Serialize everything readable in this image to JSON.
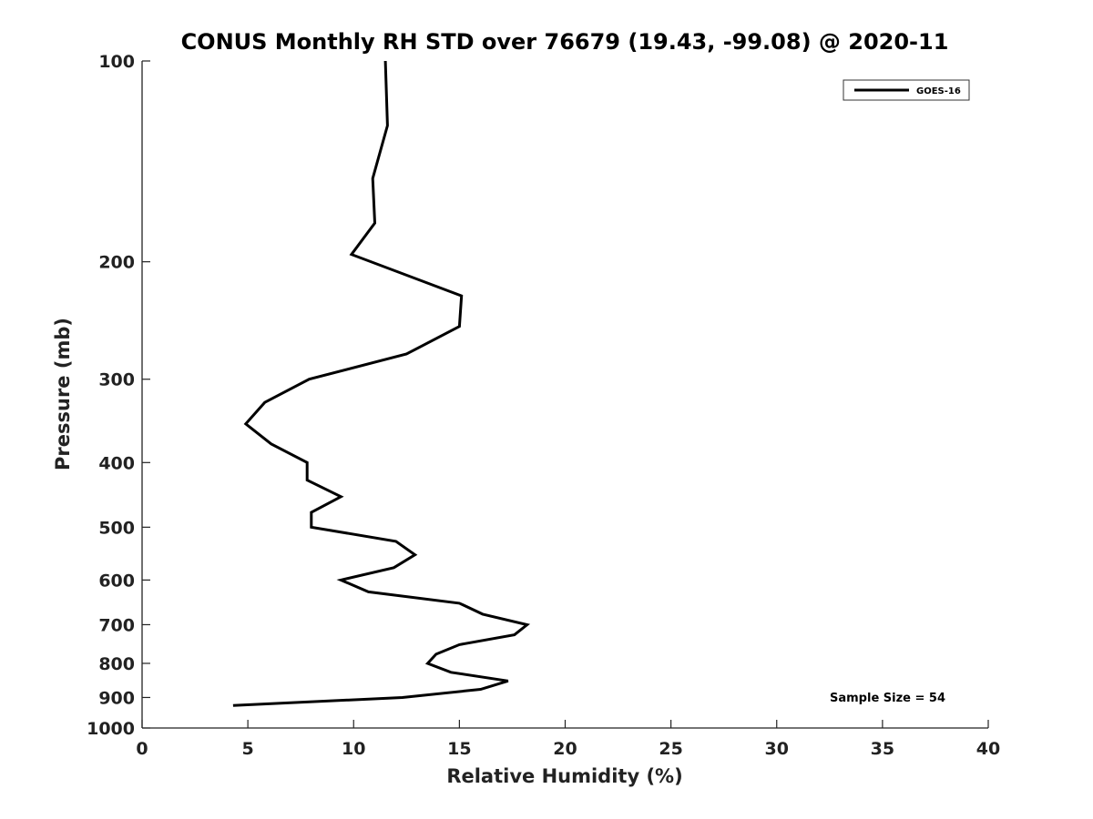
{
  "chart_data": {
    "type": "line",
    "title": "CONUS Monthly RH STD over 76679 (19.43, -99.08) @ 2020-11",
    "xlabel": "Relative Humidity (%)",
    "ylabel": "Pressure (mb)",
    "xlim": [
      0,
      40
    ],
    "ylim": [
      1000,
      100
    ],
    "y_scale": "log",
    "x_ticks": [
      0,
      5,
      10,
      15,
      20,
      25,
      30,
      35,
      40
    ],
    "y_ticks": [
      100,
      200,
      300,
      400,
      500,
      600,
      700,
      800,
      900,
      1000
    ],
    "grid": false,
    "legend_position": "top-right",
    "annotation": "Sample Size = 54",
    "series": [
      {
        "name": "GOES-16",
        "color": "#000000",
        "points": [
          {
            "x": 11.5,
            "y": 100
          },
          {
            "x": 11.6,
            "y": 125
          },
          {
            "x": 10.9,
            "y": 150
          },
          {
            "x": 11.0,
            "y": 175
          },
          {
            "x": 9.9,
            "y": 195
          },
          {
            "x": 15.1,
            "y": 225
          },
          {
            "x": 15.0,
            "y": 250
          },
          {
            "x": 12.5,
            "y": 275
          },
          {
            "x": 7.9,
            "y": 300
          },
          {
            "x": 5.8,
            "y": 325
          },
          {
            "x": 4.9,
            "y": 350
          },
          {
            "x": 6.1,
            "y": 375
          },
          {
            "x": 7.8,
            "y": 400
          },
          {
            "x": 7.8,
            "y": 425
          },
          {
            "x": 9.4,
            "y": 450
          },
          {
            "x": 8.0,
            "y": 475
          },
          {
            "x": 8.0,
            "y": 500
          },
          {
            "x": 12.0,
            "y": 525
          },
          {
            "x": 12.9,
            "y": 550
          },
          {
            "x": 11.9,
            "y": 575
          },
          {
            "x": 9.4,
            "y": 600
          },
          {
            "x": 10.7,
            "y": 625
          },
          {
            "x": 15.0,
            "y": 650
          },
          {
            "x": 16.1,
            "y": 675
          },
          {
            "x": 18.2,
            "y": 700
          },
          {
            "x": 17.6,
            "y": 725
          },
          {
            "x": 15.0,
            "y": 750
          },
          {
            "x": 13.9,
            "y": 775
          },
          {
            "x": 13.5,
            "y": 800
          },
          {
            "x": 14.6,
            "y": 825
          },
          {
            "x": 17.3,
            "y": 850
          },
          {
            "x": 16.0,
            "y": 875
          },
          {
            "x": 12.3,
            "y": 900
          },
          {
            "x": 4.3,
            "y": 925
          }
        ]
      }
    ]
  }
}
